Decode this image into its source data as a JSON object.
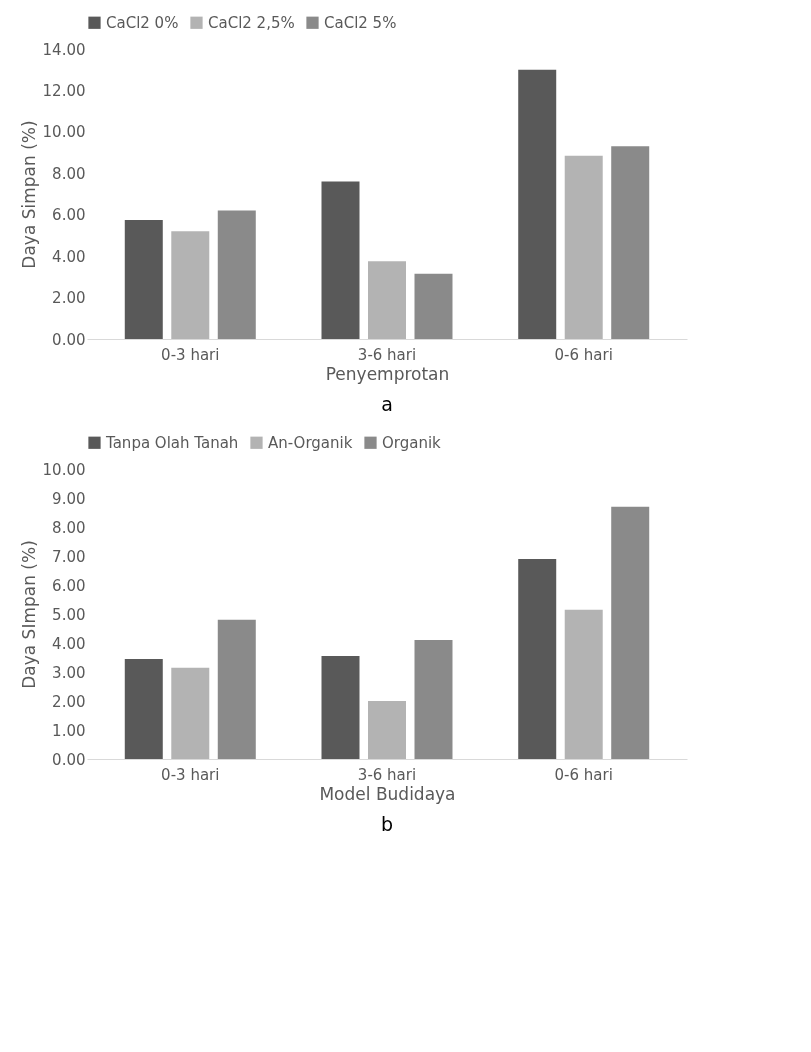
{
  "chart_data": [
    {
      "type": "bar",
      "categories": [
        "0-3 hari",
        "3-6 hari",
        "0-6 hari"
      ],
      "xlabel": "Penyemprotan",
      "ylabel": "Daya Simpan (%)",
      "series": [
        {
          "name": "CaCl2 0%",
          "color": "#595959",
          "values": [
            5.75,
            7.6,
            13.0
          ]
        },
        {
          "name": "CaCl2 2,5%",
          "color": "#b3b3b3",
          "values": [
            5.2,
            3.75,
            8.85
          ]
        },
        {
          "name": "CaCl2 5%",
          "color": "#8a8a8a",
          "values": [
            6.2,
            3.15,
            9.3
          ]
        }
      ],
      "ylim": [
        0,
        14
      ],
      "yticks": [
        {
          "value": 0,
          "label": "0.00"
        },
        {
          "value": 2,
          "label": "2.00"
        },
        {
          "value": 4,
          "label": "4.00"
        },
        {
          "value": 6,
          "label": "6.00"
        },
        {
          "value": 8,
          "label": "8.00"
        },
        {
          "value": 10,
          "label": "10.00"
        },
        {
          "value": 12,
          "label": "12.00"
        },
        {
          "value": 14,
          "label": "14.00"
        }
      ],
      "grid": false,
      "legend": "top",
      "annotations": [
        "a"
      ]
    },
    {
      "type": "bar",
      "categories": [
        "0-3 hari",
        "3-6 hari",
        "0-6 hari"
      ],
      "xlabel": "Model Budidaya",
      "ylabel": "Daya SImpan (%)",
      "series": [
        {
          "name": "Tanpa Olah Tanah",
          "color": "#595959",
          "values": [
            3.45,
            3.55,
            6.9
          ]
        },
        {
          "name": "An-Organik",
          "color": "#b3b3b3",
          "values": [
            3.15,
            2.0,
            5.15
          ]
        },
        {
          "name": "Organik",
          "color": "#8a8a8a",
          "values": [
            4.8,
            4.1,
            8.7
          ]
        }
      ],
      "ylim": [
        0,
        10
      ],
      "yticks": [
        {
          "value": 0,
          "label": "0.00"
        },
        {
          "value": 1,
          "label": "1.00"
        },
        {
          "value": 2,
          "label": "2.00"
        },
        {
          "value": 3,
          "label": "3.00"
        },
        {
          "value": 4,
          "label": "4.00"
        },
        {
          "value": 5,
          "label": "5.00"
        },
        {
          "value": 6,
          "label": "6.00"
        },
        {
          "value": 7,
          "label": "7.00"
        },
        {
          "value": 8,
          "label": "8.00"
        },
        {
          "value": 9,
          "label": "9.00"
        },
        {
          "value": 10,
          "label": "10.00"
        }
      ],
      "grid": false,
      "legend": "top",
      "annotations": [
        "b"
      ]
    }
  ]
}
